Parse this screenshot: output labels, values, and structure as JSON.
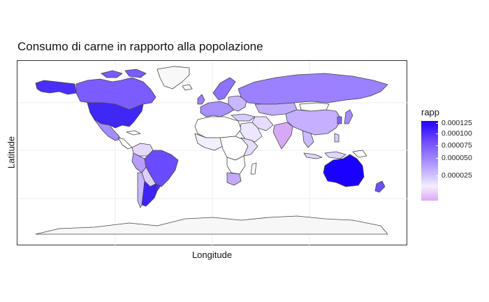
{
  "chart_data": {
    "type": "choropleth",
    "title": "Consumo di carne in rapporto alla popolazione",
    "xlabel": "Longitude",
    "ylabel": "Latitude",
    "legend": {
      "title": "rapp",
      "placement": "right",
      "ticks": [
        "0.000125",
        "0.000100",
        "0.000075",
        "0.000050",
        "0.000025"
      ],
      "color_high": "#1a00ff",
      "color_low": "#dda8f6"
    },
    "grid": true
  },
  "colors": {
    "background": "#ffffff",
    "border": "#333333",
    "antarctica": "#f7f7f7",
    "accent": "#2200ff"
  }
}
